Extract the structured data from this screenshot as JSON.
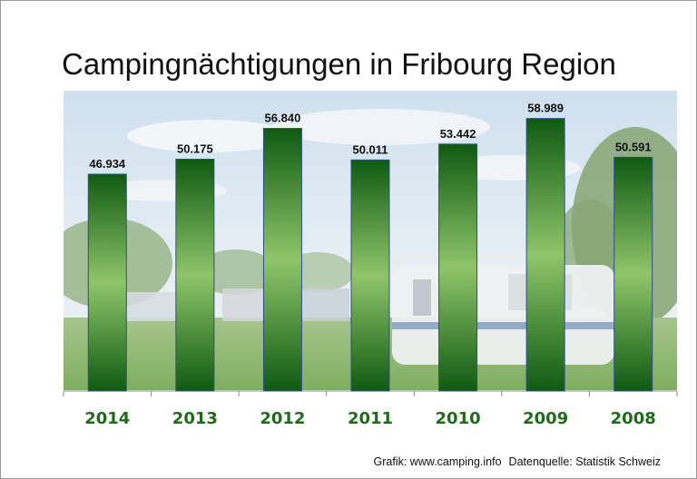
{
  "chart_data": {
    "type": "bar",
    "title": "Campingnächtigungen in Fribourg Region",
    "categories": [
      "2014",
      "2013",
      "2012",
      "2011",
      "2010",
      "2009",
      "2008"
    ],
    "values": [
      46934,
      50175,
      56840,
      50011,
      53442,
      58989,
      50591
    ],
    "value_labels": [
      "46.934",
      "50.175",
      "56.840",
      "50.011",
      "53.442",
      "58.989",
      "50.591"
    ],
    "xlabel": "",
    "ylabel": "",
    "ylim": [
      0,
      65000
    ],
    "grid": false,
    "legend": "none"
  },
  "footer": {
    "credit": "Grafik: www.camping.info",
    "source": "Datenquelle: Statistik Schweiz"
  },
  "colors": {
    "bar_dark": "#0f5a12",
    "bar_light": "#8fc56a",
    "bar_border": "#2f4f8f",
    "axis_label": "#1f6b1a"
  }
}
